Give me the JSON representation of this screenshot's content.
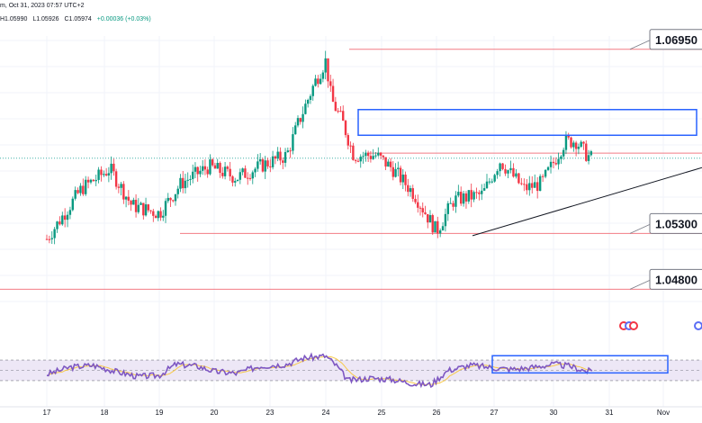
{
  "header": {
    "line1": "m, Oct 31, 2023 07:57 UTC+2",
    "ohlc": [
      "H1.05990",
      "L1.05926",
      "C1.05974",
      "+0.00036 (+0.03%)"
    ]
  },
  "colors": {
    "up": "#089981",
    "down": "#f23645",
    "level_line": "#f27b84",
    "zone_box": "#2962ff",
    "trendline": "#131722",
    "rsi_line": "#7e57c2",
    "rsi_ma": "#f7c948",
    "rsi_band": "#ede7f6",
    "price_dotted": "#26a69a"
  },
  "chart_data": [
    {
      "type": "candlestick",
      "symbol_interval": "H1",
      "x_ticks": [
        "17",
        "18",
        "19",
        "20",
        "23",
        "24",
        "25",
        "26",
        "27",
        "30",
        "31",
        "Nov"
      ],
      "ylim": [
        1.0465,
        1.0715
      ],
      "levels": [
        {
          "label": "1.06950",
          "value": 1.0695
        },
        {
          "label": "1.05300",
          "value": 1.053
        },
        {
          "label": "1.04800",
          "value": 1.048
        }
      ],
      "support_line_value": 1.0602,
      "current_price": 1.05974,
      "resistance_zone": [
        1.0618,
        1.0641
      ],
      "trendline": {
        "start": {
          "day": "26",
          "price": 1.0528
        },
        "end": {
          "day": "Nov",
          "price": 1.0589
        }
      },
      "close_path": [
        {
          "x": 0.0,
          "c": 1.0525
        },
        {
          "x": 0.6,
          "c": 1.057
        },
        {
          "x": 1.1,
          "c": 1.0588
        },
        {
          "x": 1.5,
          "c": 1.0555
        },
        {
          "x": 2.0,
          "c": 1.0548
        },
        {
          "x": 2.4,
          "c": 1.0575
        },
        {
          "x": 2.9,
          "c": 1.059
        },
        {
          "x": 3.4,
          "c": 1.058
        },
        {
          "x": 3.9,
          "c": 1.0592
        },
        {
          "x": 4.3,
          "c": 1.06
        },
        {
          "x": 4.5,
          "c": 1.0628
        },
        {
          "x": 4.8,
          "c": 1.0665
        },
        {
          "x": 5.0,
          "c": 1.0685
        },
        {
          "x": 5.1,
          "c": 1.065
        },
        {
          "x": 5.3,
          "c": 1.063
        },
        {
          "x": 5.5,
          "c": 1.06
        },
        {
          "x": 5.9,
          "c": 1.06
        },
        {
          "x": 6.2,
          "c": 1.0588
        },
        {
          "x": 6.6,
          "c": 1.0565
        },
        {
          "x": 6.9,
          "c": 1.054
        },
        {
          "x": 7.0,
          "c": 1.0532
        },
        {
          "x": 7.3,
          "c": 1.056
        },
        {
          "x": 7.8,
          "c": 1.0565
        },
        {
          "x": 8.1,
          "c": 1.0595
        },
        {
          "x": 8.5,
          "c": 1.057
        },
        {
          "x": 8.8,
          "c": 1.0575
        },
        {
          "x": 9.2,
          "c": 1.0612
        },
        {
          "x": 9.4,
          "c": 1.0613
        },
        {
          "x": 9.6,
          "c": 1.06
        },
        {
          "x": 9.7,
          "c": 1.0597
        }
      ]
    },
    {
      "type": "line",
      "name": "RSI",
      "ylim": [
        0,
        100
      ],
      "band": [
        30,
        70
      ],
      "zone": {
        "from_day": "27",
        "to_day": "Nov",
        "range": [
          45,
          68
        ]
      },
      "rsi_path": [
        {
          "x": 0.0,
          "v": 42
        },
        {
          "x": 0.4,
          "v": 56
        },
        {
          "x": 0.8,
          "v": 60
        },
        {
          "x": 1.2,
          "v": 48
        },
        {
          "x": 1.6,
          "v": 38
        },
        {
          "x": 2.0,
          "v": 40
        },
        {
          "x": 2.3,
          "v": 62
        },
        {
          "x": 2.7,
          "v": 58
        },
        {
          "x": 3.0,
          "v": 48
        },
        {
          "x": 3.4,
          "v": 44
        },
        {
          "x": 3.8,
          "v": 58
        },
        {
          "x": 4.3,
          "v": 62
        },
        {
          "x": 4.6,
          "v": 74
        },
        {
          "x": 5.0,
          "v": 78
        },
        {
          "x": 5.2,
          "v": 58
        },
        {
          "x": 5.4,
          "v": 30
        },
        {
          "x": 5.8,
          "v": 35
        },
        {
          "x": 6.2,
          "v": 32
        },
        {
          "x": 6.6,
          "v": 24
        },
        {
          "x": 6.9,
          "v": 22
        },
        {
          "x": 7.2,
          "v": 50
        },
        {
          "x": 7.6,
          "v": 60
        },
        {
          "x": 8.0,
          "v": 55
        },
        {
          "x": 8.3,
          "v": 52
        },
        {
          "x": 8.6,
          "v": 55
        },
        {
          "x": 9.0,
          "v": 62
        },
        {
          "x": 9.3,
          "v": 58
        },
        {
          "x": 9.6,
          "v": 48
        },
        {
          "x": 9.7,
          "v": 50
        }
      ]
    }
  ]
}
